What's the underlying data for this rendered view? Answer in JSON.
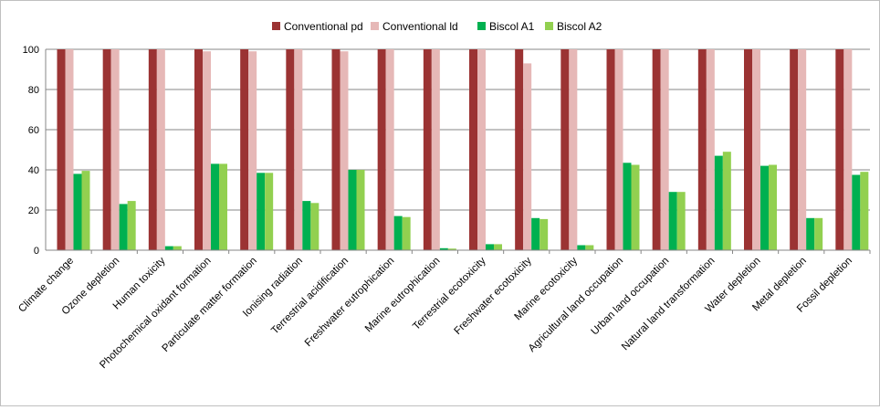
{
  "chart_data": {
    "type": "bar",
    "title": "",
    "xlabel": "",
    "ylabel": "",
    "ylim": [
      0,
      100
    ],
    "yticks": [
      0,
      20,
      40,
      60,
      80,
      100
    ],
    "grid": true,
    "legend_position": "top-center",
    "categories": [
      "Climate change",
      "Ozone depletion",
      "Human toxicity",
      "Photochemical oxidant formation",
      "Particulate matter formation",
      "Ionising radiation",
      "Terrestrial acidification",
      "Freshwater eutrophication",
      "Marine eutrophication",
      "Terrestrial ecotoxicity",
      "Freshwater ecotoxicity",
      "Marine ecotoxicity",
      "Agricultural land occupation",
      "Urban land occupation",
      "Natural land transformation",
      "Water depletion",
      "Metal depletion",
      "Fossil depletion"
    ],
    "series": [
      {
        "name": "Conventional pd",
        "color": "#9b3333",
        "values": [
          100,
          100,
          100,
          100,
          100,
          100,
          100,
          100,
          100,
          100,
          100,
          100,
          100,
          100,
          100,
          100,
          100,
          100
        ]
      },
      {
        "name": "Conventional ld",
        "color": "#e6b8b7",
        "values": [
          100,
          100,
          100,
          99,
          99,
          100,
          99,
          100,
          100,
          100,
          93,
          100,
          100,
          100,
          100,
          100,
          100,
          100
        ]
      },
      {
        "name": "Biscol A1",
        "color": "#00b050",
        "values": [
          38,
          23,
          2,
          43,
          38.5,
          24.5,
          40,
          17,
          1,
          3,
          16,
          2.5,
          43.5,
          29,
          47,
          42,
          16,
          37.5
        ]
      },
      {
        "name": "Biscol A2",
        "color": "#92d050",
        "values": [
          39.5,
          24.5,
          2,
          43,
          38.5,
          23.5,
          40,
          16.5,
          0.8,
          3,
          15.5,
          2.5,
          42.5,
          29,
          49,
          42.5,
          16,
          39
        ]
      }
    ]
  }
}
